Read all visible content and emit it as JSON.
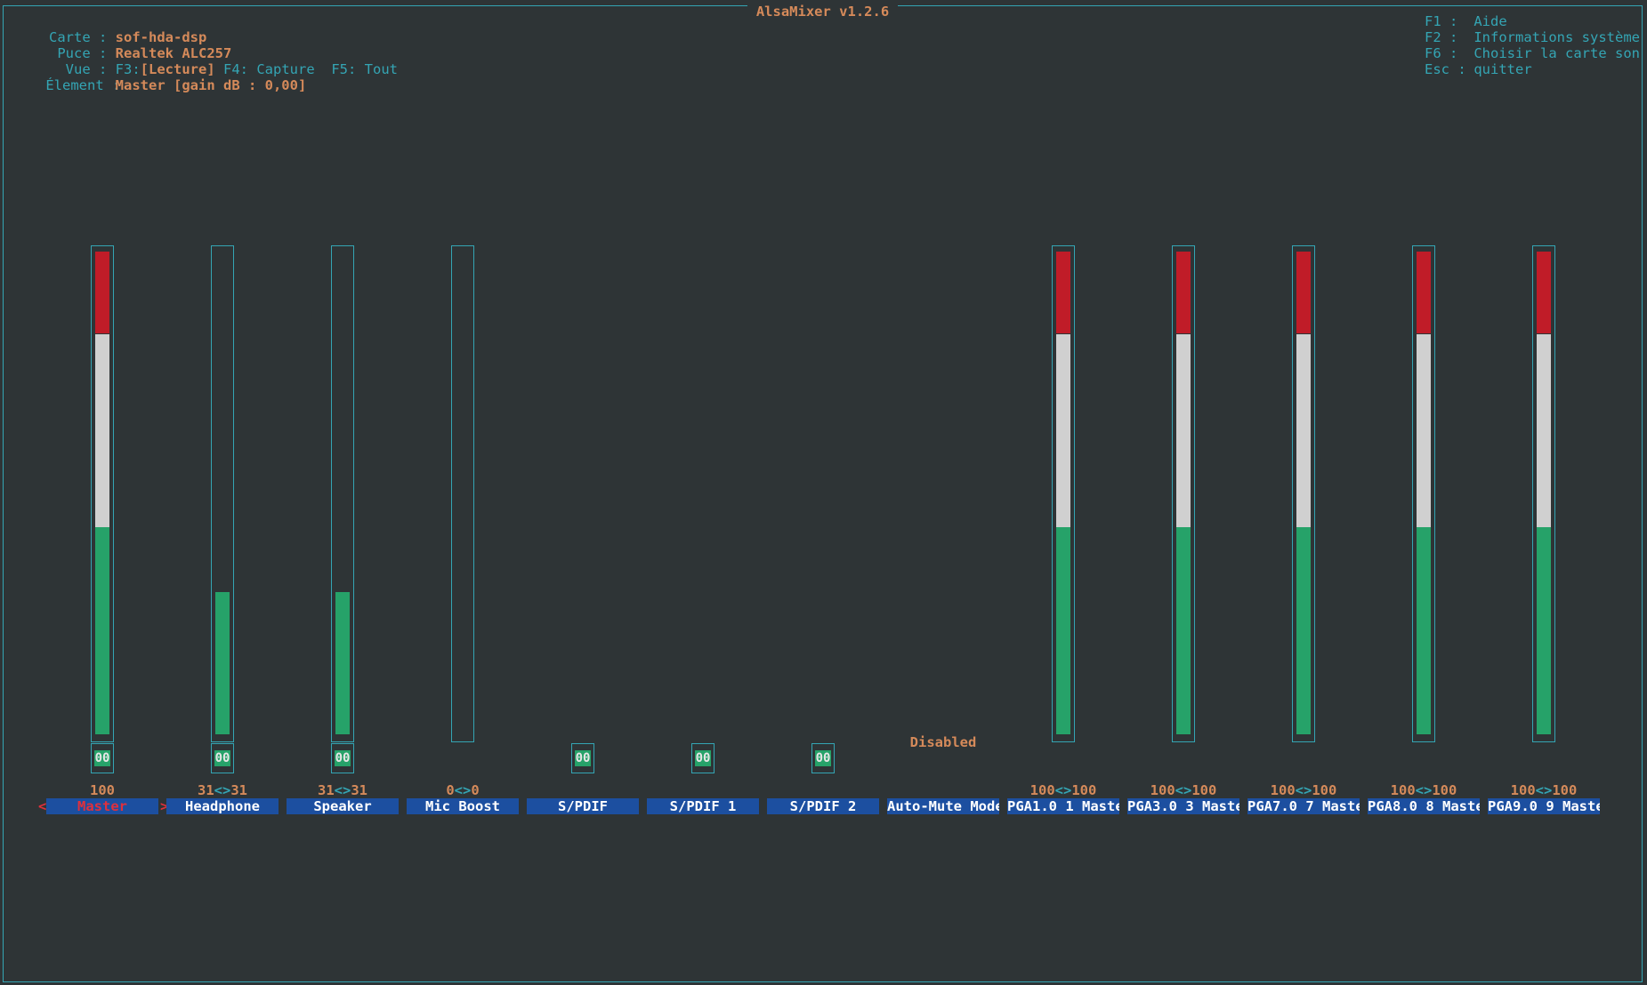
{
  "app": {
    "title": "AlsaMixer v1.2.6"
  },
  "info": {
    "card_label": "Carte :",
    "card_value": "sof-hda-dsp",
    "chip_label": "Puce :",
    "chip_value": "Realtek ALC257",
    "view_label": "Vue :",
    "view_f3": "F3:[Lecture]",
    "view_f4": "F4: Capture",
    "view_f5": "F5: Tout",
    "item_label": "Élement :",
    "item_value": "Master [gain dB : 0,00]"
  },
  "keys": [
    {
      "key": "F1 :",
      "text": "Aide"
    },
    {
      "key": "F2 :",
      "text": "Informations système"
    },
    {
      "key": "F6 :",
      "text": "Choisir la carte son"
    },
    {
      "key": "Esc :",
      "text": "quitter"
    }
  ],
  "controls": [
    {
      "name": "Master",
      "type": "volume",
      "level": 1.0,
      "value_l": "100",
      "value_r": "",
      "switch": "00",
      "selected": true
    },
    {
      "name": "Headphone",
      "type": "volume",
      "level": 0.295,
      "value_l": "31",
      "value_r": "31",
      "switch": "00"
    },
    {
      "name": "Speaker",
      "type": "volume",
      "level": 0.295,
      "value_l": "31",
      "value_r": "31",
      "switch": "00"
    },
    {
      "name": "Mic Boost",
      "type": "volume",
      "level": 0.0,
      "value_l": "0",
      "value_r": "0"
    },
    {
      "name": "S/PDIF",
      "type": "switch",
      "switch": "00"
    },
    {
      "name": "S/PDIF 1",
      "type": "switch",
      "switch": "00"
    },
    {
      "name": "S/PDIF 2",
      "type": "switch",
      "switch": "00"
    },
    {
      "name": "Auto-Mute Mode",
      "type": "enum",
      "enum_value": "Disabled"
    },
    {
      "name": "PGA1.0 1 Maste",
      "type": "volume",
      "level": 1.0,
      "value_l": "100",
      "value_r": "100"
    },
    {
      "name": "PGA3.0 3 Maste",
      "type": "volume",
      "level": 1.0,
      "value_l": "100",
      "value_r": "100"
    },
    {
      "name": "PGA7.0 7 Maste",
      "type": "volume",
      "level": 1.0,
      "value_l": "100",
      "value_r": "100"
    },
    {
      "name": "PGA8.0 8 Maste",
      "type": "volume",
      "level": 1.0,
      "value_l": "100",
      "value_r": "100"
    },
    {
      "name": "PGA9.0 9 Maste",
      "type": "volume",
      "level": 1.0,
      "value_l": "100",
      "value_r": "100"
    }
  ],
  "value_separator": "<>",
  "selection_marker_left": "<",
  "selection_marker_right": ">",
  "colors": {
    "background": "#2e3436",
    "frame": "#34a5b4",
    "accent_orange": "#d58a5a",
    "level_green": "#26a269",
    "level_white": "#d0d0d0",
    "level_red": "#c01c28",
    "name_bg": "#1c4fa0",
    "selected_red": "#e0303c"
  }
}
